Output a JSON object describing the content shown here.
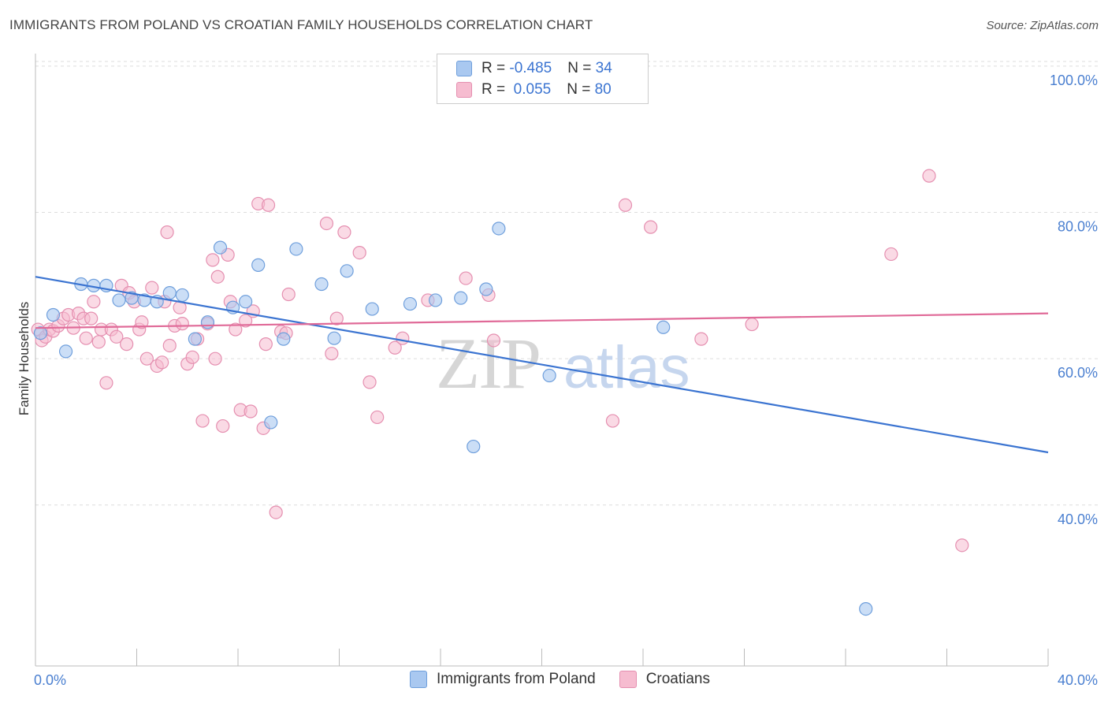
{
  "header": {
    "title": "IMMIGRANTS FROM POLAND VS CROATIAN FAMILY HOUSEHOLDS CORRELATION CHART",
    "source": "Source: ZipAtlas.com"
  },
  "legend_top": {
    "rows": [
      {
        "r_label": "R = ",
        "r_value": "-0.485",
        "n_label": "N = ",
        "n_value": "34"
      },
      {
        "r_label": "R = ",
        "r_value": " 0.055",
        "n_label": "N = ",
        "n_value": "80"
      }
    ]
  },
  "legend_bottom": {
    "items": [
      {
        "label": "Immigrants from Poland"
      },
      {
        "label": "Croatians"
      }
    ]
  },
  "watermark": {
    "zip": "ZIP",
    "atlas": "atlas"
  },
  "colors": {
    "blue_fill": "#a9c8f0",
    "blue_stroke": "#6f9fdc",
    "blue_line": "#3b74d1",
    "pink_fill": "#f6bcd0",
    "pink_stroke": "#e58fb0",
    "pink_line": "#e06a98",
    "grid": "#dddddd",
    "axis_tick_text": "#4a7fd0"
  },
  "chart_data": {
    "type": "scatter",
    "title": "IMMIGRANTS FROM POLAND VS CROATIAN FAMILY HOUSEHOLDS CORRELATION CHART",
    "xlabel": "",
    "ylabel": "Family Households",
    "xlim": [
      0,
      40
    ],
    "ylim": [
      18,
      101.5
    ],
    "x_tick_labels": [
      "0.0%",
      "40.0%"
    ],
    "y_ticks": [
      40,
      60,
      80,
      100
    ],
    "y_tick_labels": [
      "40.0%",
      "60.0%",
      "80.0%",
      "100.0%"
    ],
    "grid": true,
    "legend_position": "bottom",
    "series": [
      {
        "name": "Immigrants from Poland",
        "color": "#a9c8f0",
        "trendline": {
          "x": [
            0,
            40
          ],
          "y": [
            71.2,
            47.2
          ]
        },
        "points": [
          [
            0.2,
            63.5
          ],
          [
            0.7,
            66.0
          ],
          [
            1.2,
            61.0
          ],
          [
            1.8,
            70.2
          ],
          [
            2.3,
            70.0
          ],
          [
            2.8,
            70.0
          ],
          [
            3.3,
            68.0
          ],
          [
            3.8,
            68.3
          ],
          [
            4.3,
            68.0
          ],
          [
            4.8,
            67.8
          ],
          [
            5.3,
            69.0
          ],
          [
            5.8,
            68.7
          ],
          [
            6.3,
            62.7
          ],
          [
            6.8,
            65.0
          ],
          [
            7.3,
            75.2
          ],
          [
            7.8,
            67.0
          ],
          [
            8.3,
            67.8
          ],
          [
            8.8,
            72.8
          ],
          [
            9.3,
            51.3
          ],
          [
            9.8,
            62.7
          ],
          [
            10.3,
            75.0
          ],
          [
            11.3,
            70.2
          ],
          [
            11.8,
            62.8
          ],
          [
            12.3,
            72.0
          ],
          [
            13.3,
            66.8
          ],
          [
            14.8,
            67.5
          ],
          [
            15.8,
            68.0
          ],
          [
            16.8,
            68.3
          ],
          [
            17.3,
            48.0
          ],
          [
            17.8,
            69.5
          ],
          [
            18.3,
            77.8
          ],
          [
            20.3,
            57.7
          ],
          [
            24.8,
            64.3
          ],
          [
            32.8,
            25.8
          ]
        ]
      },
      {
        "name": "Croatians",
        "color": "#f6bcd0",
        "trendline": {
          "x": [
            0,
            40
          ],
          "y": [
            64.2,
            66.2
          ]
        },
        "points": [
          [
            0.1,
            64.0
          ],
          [
            0.25,
            62.5
          ],
          [
            0.4,
            63.0
          ],
          [
            0.55,
            64.0
          ],
          [
            0.7,
            63.8
          ],
          [
            0.9,
            64.5
          ],
          [
            1.1,
            65.5
          ],
          [
            1.3,
            66.0
          ],
          [
            1.5,
            64.2
          ],
          [
            1.7,
            66.2
          ],
          [
            1.9,
            65.5
          ],
          [
            2.0,
            62.8
          ],
          [
            2.2,
            65.5
          ],
          [
            2.3,
            67.8
          ],
          [
            2.5,
            62.3
          ],
          [
            2.6,
            64.0
          ],
          [
            2.8,
            56.7
          ],
          [
            3.0,
            64.0
          ],
          [
            3.2,
            63.0
          ],
          [
            3.4,
            70.0
          ],
          [
            3.6,
            62.0
          ],
          [
            3.7,
            69.0
          ],
          [
            3.9,
            67.8
          ],
          [
            4.1,
            64.0
          ],
          [
            4.2,
            65.0
          ],
          [
            4.4,
            60.0
          ],
          [
            4.6,
            69.7
          ],
          [
            4.8,
            59.0
          ],
          [
            5.0,
            59.5
          ],
          [
            5.1,
            67.8
          ],
          [
            5.3,
            61.8
          ],
          [
            5.2,
            77.3
          ],
          [
            5.5,
            64.5
          ],
          [
            5.7,
            67.0
          ],
          [
            5.8,
            64.8
          ],
          [
            6.0,
            59.3
          ],
          [
            6.2,
            60.2
          ],
          [
            6.4,
            62.7
          ],
          [
            6.6,
            51.5
          ],
          [
            6.8,
            64.8
          ],
          [
            7.0,
            73.5
          ],
          [
            7.1,
            60.0
          ],
          [
            7.2,
            71.2
          ],
          [
            7.4,
            50.8
          ],
          [
            7.6,
            74.2
          ],
          [
            7.7,
            67.8
          ],
          [
            7.9,
            64.0
          ],
          [
            8.1,
            53.0
          ],
          [
            8.3,
            65.2
          ],
          [
            8.5,
            52.8
          ],
          [
            8.6,
            66.5
          ],
          [
            8.8,
            81.2
          ],
          [
            9.0,
            50.5
          ],
          [
            9.1,
            62.0
          ],
          [
            9.2,
            81.0
          ],
          [
            9.5,
            39.0
          ],
          [
            9.7,
            63.7
          ],
          [
            9.9,
            63.5
          ],
          [
            10.0,
            68.8
          ],
          [
            11.5,
            78.5
          ],
          [
            11.7,
            60.7
          ],
          [
            11.9,
            65.5
          ],
          [
            12.2,
            77.3
          ],
          [
            12.8,
            74.5
          ],
          [
            13.2,
            56.8
          ],
          [
            13.5,
            52.0
          ],
          [
            14.2,
            61.5
          ],
          [
            14.5,
            62.8
          ],
          [
            15.5,
            68.0
          ],
          [
            17.0,
            71.0
          ],
          [
            17.9,
            68.7
          ],
          [
            18.1,
            62.5
          ],
          [
            22.8,
            51.5
          ],
          [
            23.3,
            81.0
          ],
          [
            24.3,
            78.0
          ],
          [
            26.3,
            62.7
          ],
          [
            28.3,
            64.7
          ],
          [
            33.8,
            74.3
          ],
          [
            35.3,
            85.0
          ],
          [
            36.6,
            34.5
          ]
        ]
      }
    ]
  }
}
